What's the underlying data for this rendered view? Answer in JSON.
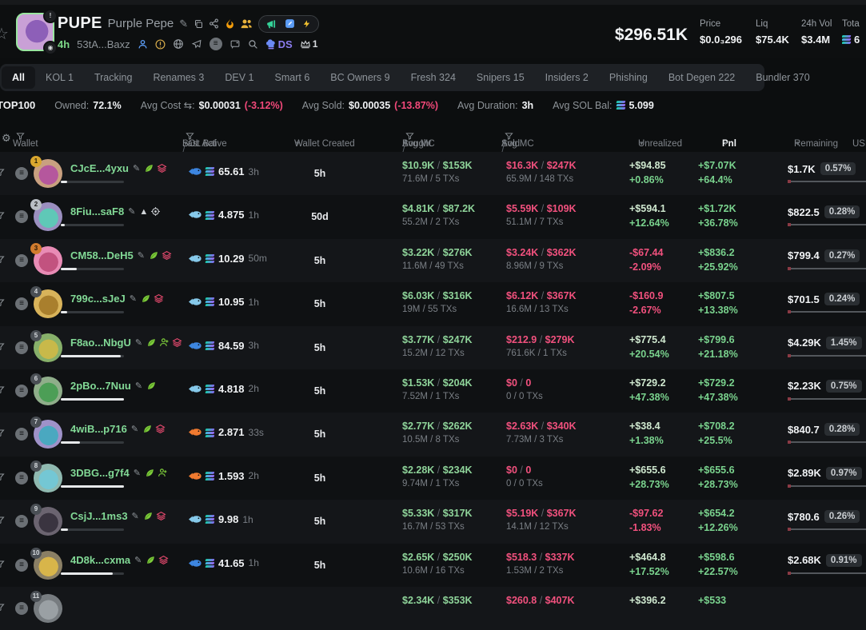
{
  "token": {
    "symbol": "PUPE",
    "name": "Purple Pepe",
    "age": "4h",
    "contract": "53tA...Baxz",
    "ds_label": "DS",
    "crown_count": "1",
    "market_cap": "$296.51K",
    "header_stats": [
      {
        "label": "Price",
        "value": "$0.0₃296",
        "sol_icon": false
      },
      {
        "label": "Liq",
        "value": "$75.4K",
        "sol_icon": false
      },
      {
        "label": "24h Vol",
        "value": "$3.4M",
        "sol_icon": false
      },
      {
        "label": "Tota",
        "value": "6",
        "sol_icon": true
      }
    ]
  },
  "tabs": [
    {
      "label": "All",
      "active": true
    },
    {
      "label": "KOL 1",
      "active": false
    },
    {
      "label": "Tracking",
      "active": false
    },
    {
      "label": "Renames 3",
      "active": false
    },
    {
      "label": "DEV 1",
      "active": false
    },
    {
      "label": "Smart 6",
      "active": false
    },
    {
      "label": "BC Owners 9",
      "active": false
    },
    {
      "label": "Fresh 324",
      "active": false
    },
    {
      "label": "Snipers 15",
      "active": false
    },
    {
      "label": "Insiders 2",
      "active": false
    },
    {
      "label": "Phishing",
      "active": false
    },
    {
      "label": "Bot Degen 222",
      "active": false
    },
    {
      "label": "Bundler 370",
      "active": false
    }
  ],
  "summary": {
    "title": "TOP100",
    "owned_label": "Owned:",
    "owned": "72.1%",
    "avg_cost_label": "Avg Cost ⇆:",
    "avg_cost": "$0.00031",
    "avg_cost_pct": "(-3.12%)",
    "avg_sold_label": "Avg Sold:",
    "avg_sold": "$0.00035",
    "avg_sold_pct": "(-13.87%)",
    "avg_duration_label": "Avg Duration:",
    "avg_duration": "3h",
    "avg_sol_label": "Avg SOL Bal:",
    "avg_sol": "5.099"
  },
  "icons": {
    "gear": "⚙",
    "caret_down": "▾",
    "star": "☆",
    "edit": "✎",
    "triangle": "▲",
    "list_circle": "≡",
    "alert": "!"
  },
  "table": {
    "sep": "/",
    "headers": {
      "wallet": "Wallet",
      "sol_bal": "SOL Bal",
      "last_active": "Last Active",
      "created": "Wallet Created",
      "bought": "Bought",
      "avg_mc": "Avg MC",
      "sold": "Sold",
      "avg_mc2": "Avg MC",
      "unrealized": "Unrealized",
      "pnl": "Pnl",
      "remaining": "Remaining",
      "usd": "USD"
    },
    "rows": [
      {
        "rank": "1",
        "address": "CJcE...4yxu",
        "badges": [
          "leaf",
          "layers"
        ],
        "progress": 10,
        "avatar_bg": "#c9a080",
        "avatar_blob": "#b5579d",
        "tier": "dolphin",
        "sol_bal": "65.61",
        "last_active": "3h",
        "created": "5h",
        "bought": "$10.9K",
        "bought_mc": "$153K",
        "bought_sub": "71.6M / 5 TXs",
        "sold": "$16.3K",
        "sold_mc": "$247K",
        "sold_sub": "65.9M / 148 TXs",
        "unreal": "+$94.85",
        "unreal_pct": "+0.86%",
        "unreal_neg": false,
        "pnl": "+$7.07K",
        "pnl_pct": "+64.4%",
        "remaining": "$1.7K",
        "remaining_pct": "0.57%"
      },
      {
        "rank": "2",
        "address": "8Fiu...saF8",
        "badges": [
          "triangle",
          "crosshair"
        ],
        "progress": 6,
        "avatar_bg": "#9b8fc0",
        "avatar_blob": "#5fc8b7",
        "tier": "whale",
        "sol_bal": "4.875",
        "last_active": "1h",
        "created": "50d",
        "bought": "$4.81K",
        "bought_mc": "$87.2K",
        "bought_sub": "55.2M / 2 TXs",
        "sold": "$5.59K",
        "sold_mc": "$109K",
        "sold_sub": "51.1M / 7 TXs",
        "unreal": "+$594.1",
        "unreal_pct": "+12.64%",
        "unreal_neg": false,
        "pnl": "+$1.72K",
        "pnl_pct": "+36.78%",
        "remaining": "$822.5",
        "remaining_pct": "0.28%"
      },
      {
        "rank": "3",
        "address": "CM58...DeH5",
        "badges": [
          "leaf",
          "layers"
        ],
        "progress": 25,
        "avatar_bg": "#e88bb5",
        "avatar_blob": "#c2527f",
        "tier": "whale",
        "sol_bal": "10.29",
        "last_active": "50m",
        "created": "5h",
        "bought": "$3.22K",
        "bought_mc": "$276K",
        "bought_sub": "11.6M / 49 TXs",
        "sold": "$3.24K",
        "sold_mc": "$362K",
        "sold_sub": "8.96M / 9 TXs",
        "unreal": "-$67.44",
        "unreal_pct": "-2.09%",
        "unreal_neg": true,
        "pnl": "+$836.2",
        "pnl_pct": "+25.92%",
        "remaining": "$799.4",
        "remaining_pct": "0.27%"
      },
      {
        "rank": "4",
        "address": "799c...sJeJ",
        "badges": [
          "leaf",
          "layers"
        ],
        "progress": 10,
        "avatar_bg": "#d8b35a",
        "avatar_blob": "#a97f2d",
        "tier": "whale",
        "sol_bal": "10.95",
        "last_active": "1h",
        "created": "5h",
        "bought": "$6.03K",
        "bought_mc": "$316K",
        "bought_sub": "19M / 55 TXs",
        "sold": "$6.12K",
        "sold_mc": "$367K",
        "sold_sub": "16.6M / 13 TXs",
        "unreal": "-$160.9",
        "unreal_pct": "-2.67%",
        "unreal_neg": true,
        "pnl": "+$807.5",
        "pnl_pct": "+13.38%",
        "remaining": "$701.5",
        "remaining_pct": "0.24%"
      },
      {
        "rank": "5",
        "address": "F8ao...NbgU",
        "badges": [
          "leaf",
          "person_add",
          "layers"
        ],
        "progress": 95,
        "avatar_bg": "#87b06a",
        "avatar_blob": "#c8b94a",
        "tier": "dolphin",
        "sol_bal": "84.59",
        "last_active": "3h",
        "created": "5h",
        "bought": "$3.77K",
        "bought_mc": "$247K",
        "bought_sub": "15.2M / 12 TXs",
        "sold": "$212.9",
        "sold_mc": "$279K",
        "sold_sub": "761.6K / 1 TXs",
        "unreal": "+$775.4",
        "unreal_pct": "+20.54%",
        "unreal_neg": false,
        "pnl": "+$799.6",
        "pnl_pct": "+21.18%",
        "remaining": "$4.29K",
        "remaining_pct": "1.45%"
      },
      {
        "rank": "6",
        "address": "2pBo...7Nuu",
        "badges": [
          "leaf"
        ],
        "progress": 100,
        "avatar_bg": "#8fae8a",
        "avatar_blob": "#4c9e56",
        "tier": "whale",
        "sol_bal": "4.818",
        "last_active": "2h",
        "created": "5h",
        "bought": "$1.53K",
        "bought_mc": "$204K",
        "bought_sub": "7.52M / 1 TXs",
        "sold": "$0",
        "sold_mc": "0",
        "sold_sub": "0 / 0 TXs",
        "unreal": "+$729.2",
        "unreal_pct": "+47.38%",
        "unreal_neg": false,
        "pnl": "+$729.2",
        "pnl_pct": "+47.38%",
        "remaining": "$2.23K",
        "remaining_pct": "0.75%"
      },
      {
        "rank": "7",
        "address": "4wiB...p716",
        "badges": [
          "leaf",
          "layers"
        ],
        "progress": 30,
        "avatar_bg": "#9f92c9",
        "avatar_blob": "#4aa8c0",
        "tier": "fish",
        "sol_bal": "2.871",
        "last_active": "33s",
        "created": "5h",
        "bought": "$2.77K",
        "bought_mc": "$262K",
        "bought_sub": "10.5M / 8 TXs",
        "sold": "$2.63K",
        "sold_mc": "$340K",
        "sold_sub": "7.73M / 3 TXs",
        "unreal": "+$38.4",
        "unreal_pct": "+1.38%",
        "unreal_neg": false,
        "pnl": "+$708.2",
        "pnl_pct": "+25.5%",
        "remaining": "$840.7",
        "remaining_pct": "0.28%"
      },
      {
        "rank": "8",
        "address": "3DBG...g7f4",
        "badges": [
          "leaf",
          "person_add"
        ],
        "progress": 100,
        "avatar_bg": "#8fb9b0",
        "avatar_blob": "#74c7d4",
        "tier": "fish",
        "sol_bal": "1.593",
        "last_active": "2h",
        "created": "5h",
        "bought": "$2.28K",
        "bought_mc": "$234K",
        "bought_sub": "9.74M / 1 TXs",
        "sold": "$0",
        "sold_mc": "0",
        "sold_sub": "0 / 0 TXs",
        "unreal": "+$655.6",
        "unreal_pct": "+28.73%",
        "unreal_neg": false,
        "pnl": "+$655.6",
        "pnl_pct": "+28.73%",
        "remaining": "$2.89K",
        "remaining_pct": "0.97%"
      },
      {
        "rank": "9",
        "address": "CsjJ...1ms3",
        "badges": [
          "leaf",
          "layers"
        ],
        "progress": 12,
        "avatar_bg": "#6b6470",
        "avatar_blob": "#3a3440",
        "tier": "whale",
        "sol_bal": "9.98",
        "last_active": "1h",
        "created": "5h",
        "bought": "$5.33K",
        "bought_mc": "$317K",
        "bought_sub": "16.7M / 53 TXs",
        "sold": "$5.19K",
        "sold_mc": "$367K",
        "sold_sub": "14.1M / 12 TXs",
        "unreal": "-$97.62",
        "unreal_pct": "-1.83%",
        "unreal_neg": true,
        "pnl": "+$654.2",
        "pnl_pct": "+12.26%",
        "remaining": "$780.6",
        "remaining_pct": "0.26%"
      },
      {
        "rank": "10",
        "address": "4D8k...cxma",
        "badges": [
          "leaf",
          "layers"
        ],
        "progress": 82,
        "avatar_bg": "#8a7f65",
        "avatar_blob": "#d8b54a",
        "tier": "dolphin",
        "sol_bal": "41.65",
        "last_active": "1h",
        "created": "5h",
        "bought": "$2.65K",
        "bought_mc": "$250K",
        "bought_sub": "10.6M / 16 TXs",
        "sold": "$518.3",
        "sold_mc": "$337K",
        "sold_sub": "1.53M / 2 TXs",
        "unreal": "+$464.8",
        "unreal_pct": "+17.52%",
        "unreal_neg": false,
        "pnl": "+$598.6",
        "pnl_pct": "+22.57%",
        "remaining": "$2.68K",
        "remaining_pct": "0.91%"
      },
      {
        "rank": "11",
        "address": "",
        "badges": [],
        "progress": null,
        "avatar_bg": "#777c80",
        "avatar_blob": "#9aa0a4",
        "tier": "",
        "sol_bal": "",
        "last_active": "",
        "created": "",
        "bought": "$2.34K",
        "bought_mc": "$353K",
        "bought_sub": "",
        "sold": "$260.8",
        "sold_mc": "$407K",
        "sold_sub": "",
        "unreal": "+$396.2",
        "unreal_pct": "",
        "unreal_neg": false,
        "pnl": "+$533",
        "pnl_pct": "",
        "remaining": "",
        "remaining_pct": ""
      }
    ]
  }
}
